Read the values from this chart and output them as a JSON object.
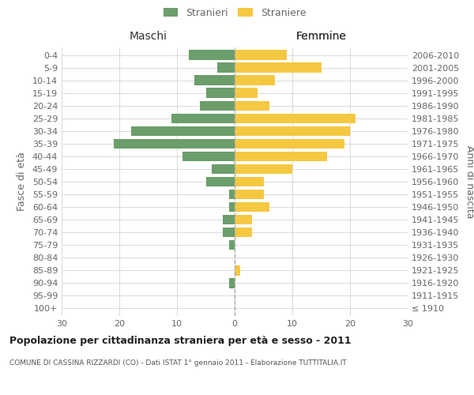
{
  "age_groups": [
    "100+",
    "95-99",
    "90-94",
    "85-89",
    "80-84",
    "75-79",
    "70-74",
    "65-69",
    "60-64",
    "55-59",
    "50-54",
    "45-49",
    "40-44",
    "35-39",
    "30-34",
    "25-29",
    "20-24",
    "15-19",
    "10-14",
    "5-9",
    "0-4"
  ],
  "birth_years": [
    "≤ 1910",
    "1911-1915",
    "1916-1920",
    "1921-1925",
    "1926-1930",
    "1931-1935",
    "1936-1940",
    "1941-1945",
    "1946-1950",
    "1951-1955",
    "1956-1960",
    "1961-1965",
    "1966-1970",
    "1971-1975",
    "1976-1980",
    "1981-1985",
    "1986-1990",
    "1991-1995",
    "1996-2000",
    "2001-2005",
    "2006-2010"
  ],
  "maschi": [
    0,
    0,
    1,
    0,
    0,
    1,
    2,
    2,
    1,
    1,
    5,
    4,
    9,
    21,
    18,
    11,
    6,
    5,
    7,
    3,
    8
  ],
  "femmine": [
    0,
    0,
    0,
    1,
    0,
    0,
    3,
    3,
    6,
    5,
    5,
    10,
    16,
    19,
    20,
    21,
    6,
    4,
    7,
    15,
    9
  ],
  "maschi_color": "#6b9e6b",
  "femmine_color": "#f5c842",
  "bar_height": 0.78,
  "xlim": 30,
  "title": "Popolazione per cittadinanza straniera per età e sesso - 2011",
  "subtitle": "COMUNE DI CASSINA RIZZARDI (CO) - Dati ISTAT 1° gennaio 2011 - Elaborazione TUTTITALIA.IT",
  "ylabel_left": "Fasce di età",
  "ylabel_right": "Anni di nascita",
  "xlabel_maschi": "Maschi",
  "xlabel_femmine": "Femmine",
  "legend_stranieri": "Stranieri",
  "legend_straniere": "Straniere",
  "bg_color": "#ffffff",
  "grid_color": "#cccccc",
  "text_color": "#666666"
}
